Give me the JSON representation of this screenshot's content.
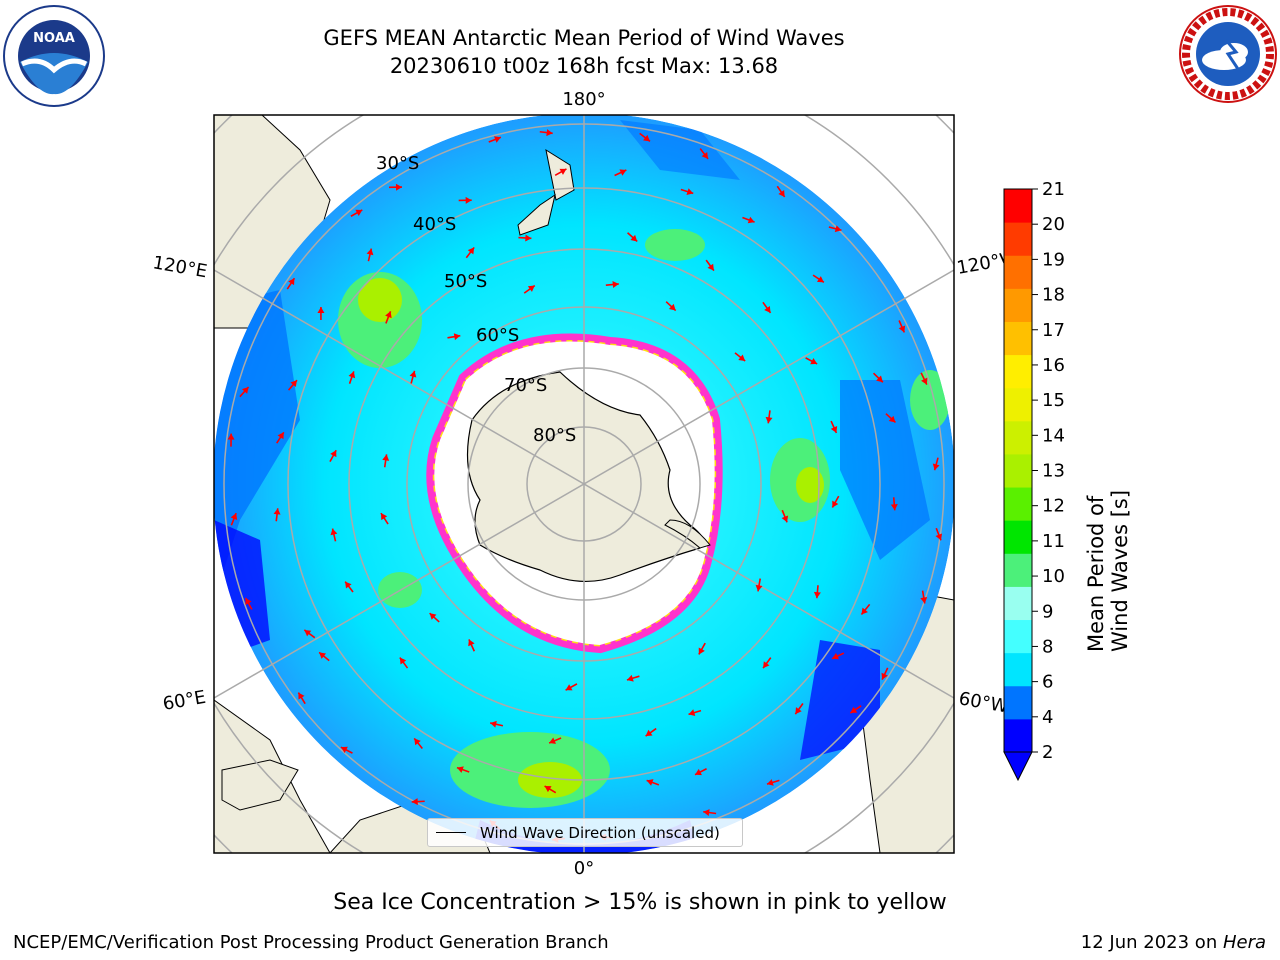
{
  "title": {
    "line1": "GEFS MEAN Antarctic Mean Period of Wind Waves",
    "line2": "20230610 t00z 168h fcst   Max: 13.68"
  },
  "logos": {
    "left": {
      "name": "noaa-logo",
      "text": "NOAA"
    },
    "right": {
      "name": "nws-logo",
      "text": "NATIONAL WEATHER SERVICE"
    }
  },
  "map": {
    "projection": "south-polar-stereographic",
    "lon_labels": {
      "top": "180°",
      "bottom": "0°",
      "left_upper": "120°E",
      "right_upper": "120°W",
      "left_lower": "60°E",
      "right_lower": "60°W"
    },
    "lat_labels": [
      "30°S",
      "40°S",
      "50°S",
      "60°S",
      "70°S",
      "80°S"
    ],
    "colors": {
      "land": "#eeecdc",
      "ice_edge": "#ff33cc",
      "arrow": "#ff0000",
      "grid": "#aaaaaa"
    }
  },
  "legend": {
    "label": "Wind Wave Direction (unscaled)"
  },
  "colorbar": {
    "label": "Mean Period of Wind Waves [s]",
    "ticks": [
      "2",
      "4",
      "6",
      "8",
      "9",
      "10",
      "11",
      "12",
      "13",
      "14",
      "15",
      "16",
      "17",
      "18",
      "19",
      "20",
      "21"
    ],
    "colors": [
      "#0000ff",
      "#0075ff",
      "#00e5ff",
      "#44ffff",
      "#99fff0",
      "#4cf07a",
      "#00e600",
      "#5af000",
      "#aaf000",
      "#ccf000",
      "#eef000",
      "#ffee00",
      "#ffc000",
      "#ff9900",
      "#ff7000",
      "#ff3b00",
      "#ff0000"
    ],
    "extend_color": "#0000ff"
  },
  "note": "Sea Ice Concentration > 15% is shown in pink to yellow",
  "footer": {
    "left": "NCEP/EMC/Verification Post Processing Product Generation Branch",
    "right_prefix": "12 Jun 2023 on ",
    "right_host": "Hera"
  }
}
